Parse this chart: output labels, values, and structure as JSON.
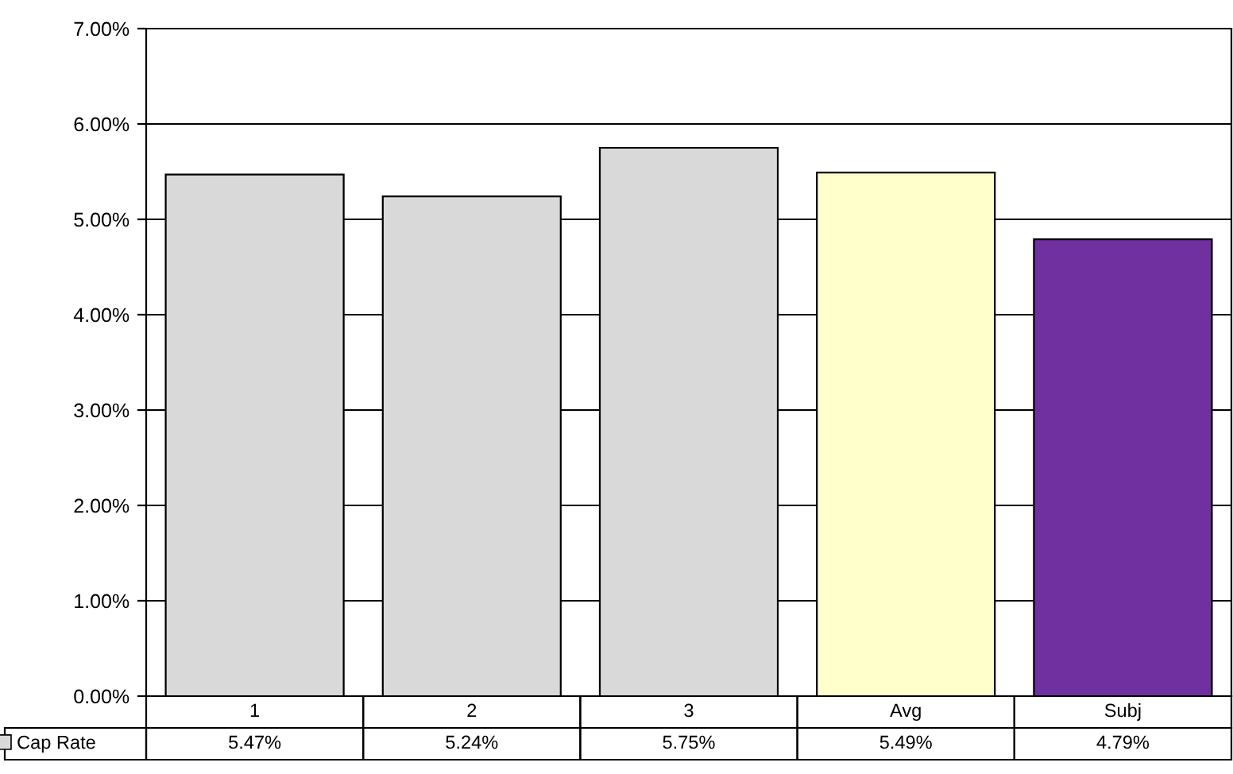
{
  "chart_data": {
    "type": "bar",
    "categories": [
      "1",
      "2",
      "3",
      "Avg",
      "Subj"
    ],
    "series": [
      {
        "name": "Cap Rate",
        "color": "#d9d9d9",
        "colors": [
          "#d9d9d9",
          "#d9d9d9",
          "#d9d9d9",
          "#ffffcc",
          "#7030a0"
        ],
        "values": [
          5.47,
          5.24,
          5.75,
          5.49,
          4.79
        ],
        "value_labels": [
          "5.47%",
          "5.24%",
          "5.75%",
          "5.49%",
          "4.79%"
        ]
      }
    ],
    "ylim": [
      0,
      7
    ],
    "yticks": [
      {
        "value": 0,
        "label": "0.00%"
      },
      {
        "value": 1,
        "label": "1.00%"
      },
      {
        "value": 2,
        "label": "2.00%"
      },
      {
        "value": 3,
        "label": "3.00%"
      },
      {
        "value": 4,
        "label": "4.00%"
      },
      {
        "value": 5,
        "label": "5.00%"
      },
      {
        "value": 6,
        "label": "6.00%"
      },
      {
        "value": 7,
        "label": "7.00%"
      }
    ],
    "grid": "y",
    "legend": "bottom left"
  }
}
